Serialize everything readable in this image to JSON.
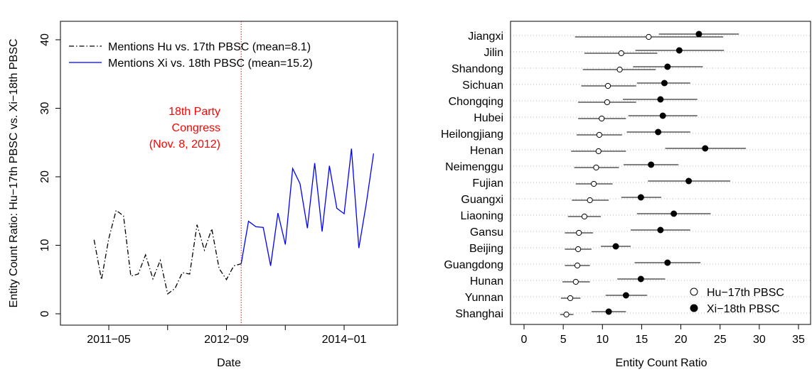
{
  "colors": {
    "hu": "#000000",
    "xi": "#0000ff",
    "annotation": "#ff0000",
    "grid": "#bdbdbd"
  },
  "chart_data": [
    {
      "type": "line",
      "xlabel": "Date",
      "ylabel": "Entity Count Ratio: Hu−17th PBSC vs. Xi−18th PBSC",
      "ylim": [
        0,
        40
      ],
      "yticks": [
        0,
        10,
        20,
        30,
        40
      ],
      "xticks": [
        "2011−05",
        "2012−09",
        "2014−01"
      ],
      "legend_position": "top-left",
      "annotation": {
        "lines": [
          "18th Party",
          "Congress",
          "(Nov. 8, 2012)"
        ],
        "x": "2012-11"
      },
      "series": [
        {
          "name": "Mentions Hu vs. 17th PBSC (mean=8.1)",
          "style": "dash-dot",
          "x": [
            "2011-03",
            "2011-04",
            "2011-05",
            "2011-06",
            "2011-07",
            "2011-08",
            "2011-09",
            "2011-10",
            "2011-11",
            "2011-12",
            "2012-01",
            "2012-02",
            "2012-03",
            "2012-04",
            "2012-05",
            "2012-06",
            "2012-07",
            "2012-08",
            "2012-09",
            "2012-10",
            "2012-11"
          ],
          "y": [
            10.8,
            5.0,
            11.0,
            15.1,
            14.3,
            5.5,
            5.8,
            8.6,
            5.1,
            7.8,
            2.9,
            3.7,
            6.0,
            5.8,
            13.0,
            9.3,
            12.4,
            6.6,
            5.0,
            7.0,
            7.3
          ]
        },
        {
          "name": "Mentions Xi vs. 18th PBSC (mean=15.2)",
          "style": "solid",
          "x": [
            "2012-11",
            "2012-12",
            "2013-01",
            "2013-02",
            "2013-03",
            "2013-04",
            "2013-05",
            "2013-06",
            "2013-07",
            "2013-08",
            "2013-09",
            "2013-10",
            "2013-11",
            "2013-12",
            "2014-01",
            "2014-02",
            "2014-03",
            "2014-04",
            "2014-05"
          ],
          "y": [
            7.3,
            13.5,
            12.7,
            12.6,
            7.0,
            14.7,
            10.1,
            21.2,
            19.0,
            12.5,
            22.0,
            12.0,
            21.6,
            15.4,
            14.6,
            24.1,
            9.6,
            16.0,
            23.4
          ]
        }
      ]
    },
    {
      "type": "scatter",
      "xlabel": "Entity Count Ratio",
      "xlim": [
        0,
        35
      ],
      "xticks": [
        0,
        5,
        10,
        15,
        20,
        25,
        30,
        35
      ],
      "legend_position": "bottom-right",
      "series_names": [
        "Hu−17th PBSC",
        "Xi−18th PBSC"
      ],
      "provinces": [
        {
          "name": "Jiangxi",
          "hu": 15.9,
          "hu_ci": [
            6.5,
            25.4
          ],
          "xi": 22.3,
          "xi_ci": [
            17.2,
            27.4
          ]
        },
        {
          "name": "Jilin",
          "hu": 12.4,
          "hu_ci": [
            7.7,
            17.0
          ],
          "xi": 19.8,
          "xi_ci": [
            14.2,
            25.5
          ]
        },
        {
          "name": "Shandong",
          "hu": 12.2,
          "hu_ci": [
            7.5,
            16.8
          ],
          "xi": 18.3,
          "xi_ci": [
            13.9,
            22.8
          ]
        },
        {
          "name": "Sichuan",
          "hu": 10.7,
          "hu_ci": [
            7.3,
            14.3
          ],
          "xi": 17.9,
          "xi_ci": [
            14.4,
            21.2
          ]
        },
        {
          "name": "Chongqing",
          "hu": 10.6,
          "hu_ci": [
            6.9,
            14.3
          ],
          "xi": 17.4,
          "xi_ci": [
            12.6,
            22.1
          ]
        },
        {
          "name": "Hubei",
          "hu": 9.9,
          "hu_ci": [
            6.9,
            13.0
          ],
          "xi": 17.7,
          "xi_ci": [
            13.3,
            22.1
          ]
        },
        {
          "name": "Heilongjiang",
          "hu": 9.6,
          "hu_ci": [
            6.7,
            12.5
          ],
          "xi": 17.1,
          "xi_ci": [
            13.1,
            21.2
          ]
        },
        {
          "name": "Henan",
          "hu": 9.5,
          "hu_ci": [
            6.0,
            13.0
          ],
          "xi": 23.1,
          "xi_ci": [
            18.0,
            28.3
          ]
        },
        {
          "name": "Neimenggu",
          "hu": 9.2,
          "hu_ci": [
            6.4,
            12.1
          ],
          "xi": 16.2,
          "xi_ci": [
            12.7,
            19.7
          ]
        },
        {
          "name": "Fujian",
          "hu": 8.9,
          "hu_ci": [
            6.6,
            11.3
          ],
          "xi": 21.0,
          "xi_ci": [
            15.8,
            26.3
          ]
        },
        {
          "name": "Guangxi",
          "hu": 8.4,
          "hu_ci": [
            6.1,
            10.8
          ],
          "xi": 14.9,
          "xi_ci": [
            12.4,
            17.5
          ]
        },
        {
          "name": "Liaoning",
          "hu": 7.7,
          "hu_ci": [
            5.6,
            9.8
          ],
          "xi": 19.1,
          "xi_ci": [
            14.4,
            23.8
          ]
        },
        {
          "name": "Gansu",
          "hu": 7.0,
          "hu_ci": [
            5.2,
            8.8
          ],
          "xi": 17.4,
          "xi_ci": [
            13.6,
            21.2
          ]
        },
        {
          "name": "Beijing",
          "hu": 6.9,
          "hu_ci": [
            5.2,
            8.6
          ],
          "xi": 11.7,
          "xi_ci": [
            9.8,
            13.6
          ]
        },
        {
          "name": "Guangdong",
          "hu": 6.8,
          "hu_ci": [
            5.2,
            8.4
          ],
          "xi": 18.3,
          "xi_ci": [
            14.1,
            22.5
          ]
        },
        {
          "name": "Hunan",
          "hu": 6.6,
          "hu_ci": [
            4.9,
            8.4
          ],
          "xi": 14.9,
          "xi_ci": [
            11.9,
            18.0
          ]
        },
        {
          "name": "Yunnan",
          "hu": 5.9,
          "hu_ci": [
            4.7,
            7.2
          ],
          "xi": 13.0,
          "xi_ci": [
            10.4,
            15.7
          ]
        },
        {
          "name": "Shanghai",
          "hu": 5.4,
          "hu_ci": [
            4.6,
            6.3
          ],
          "xi": 10.8,
          "xi_ci": [
            8.6,
            13.0
          ]
        }
      ]
    }
  ]
}
